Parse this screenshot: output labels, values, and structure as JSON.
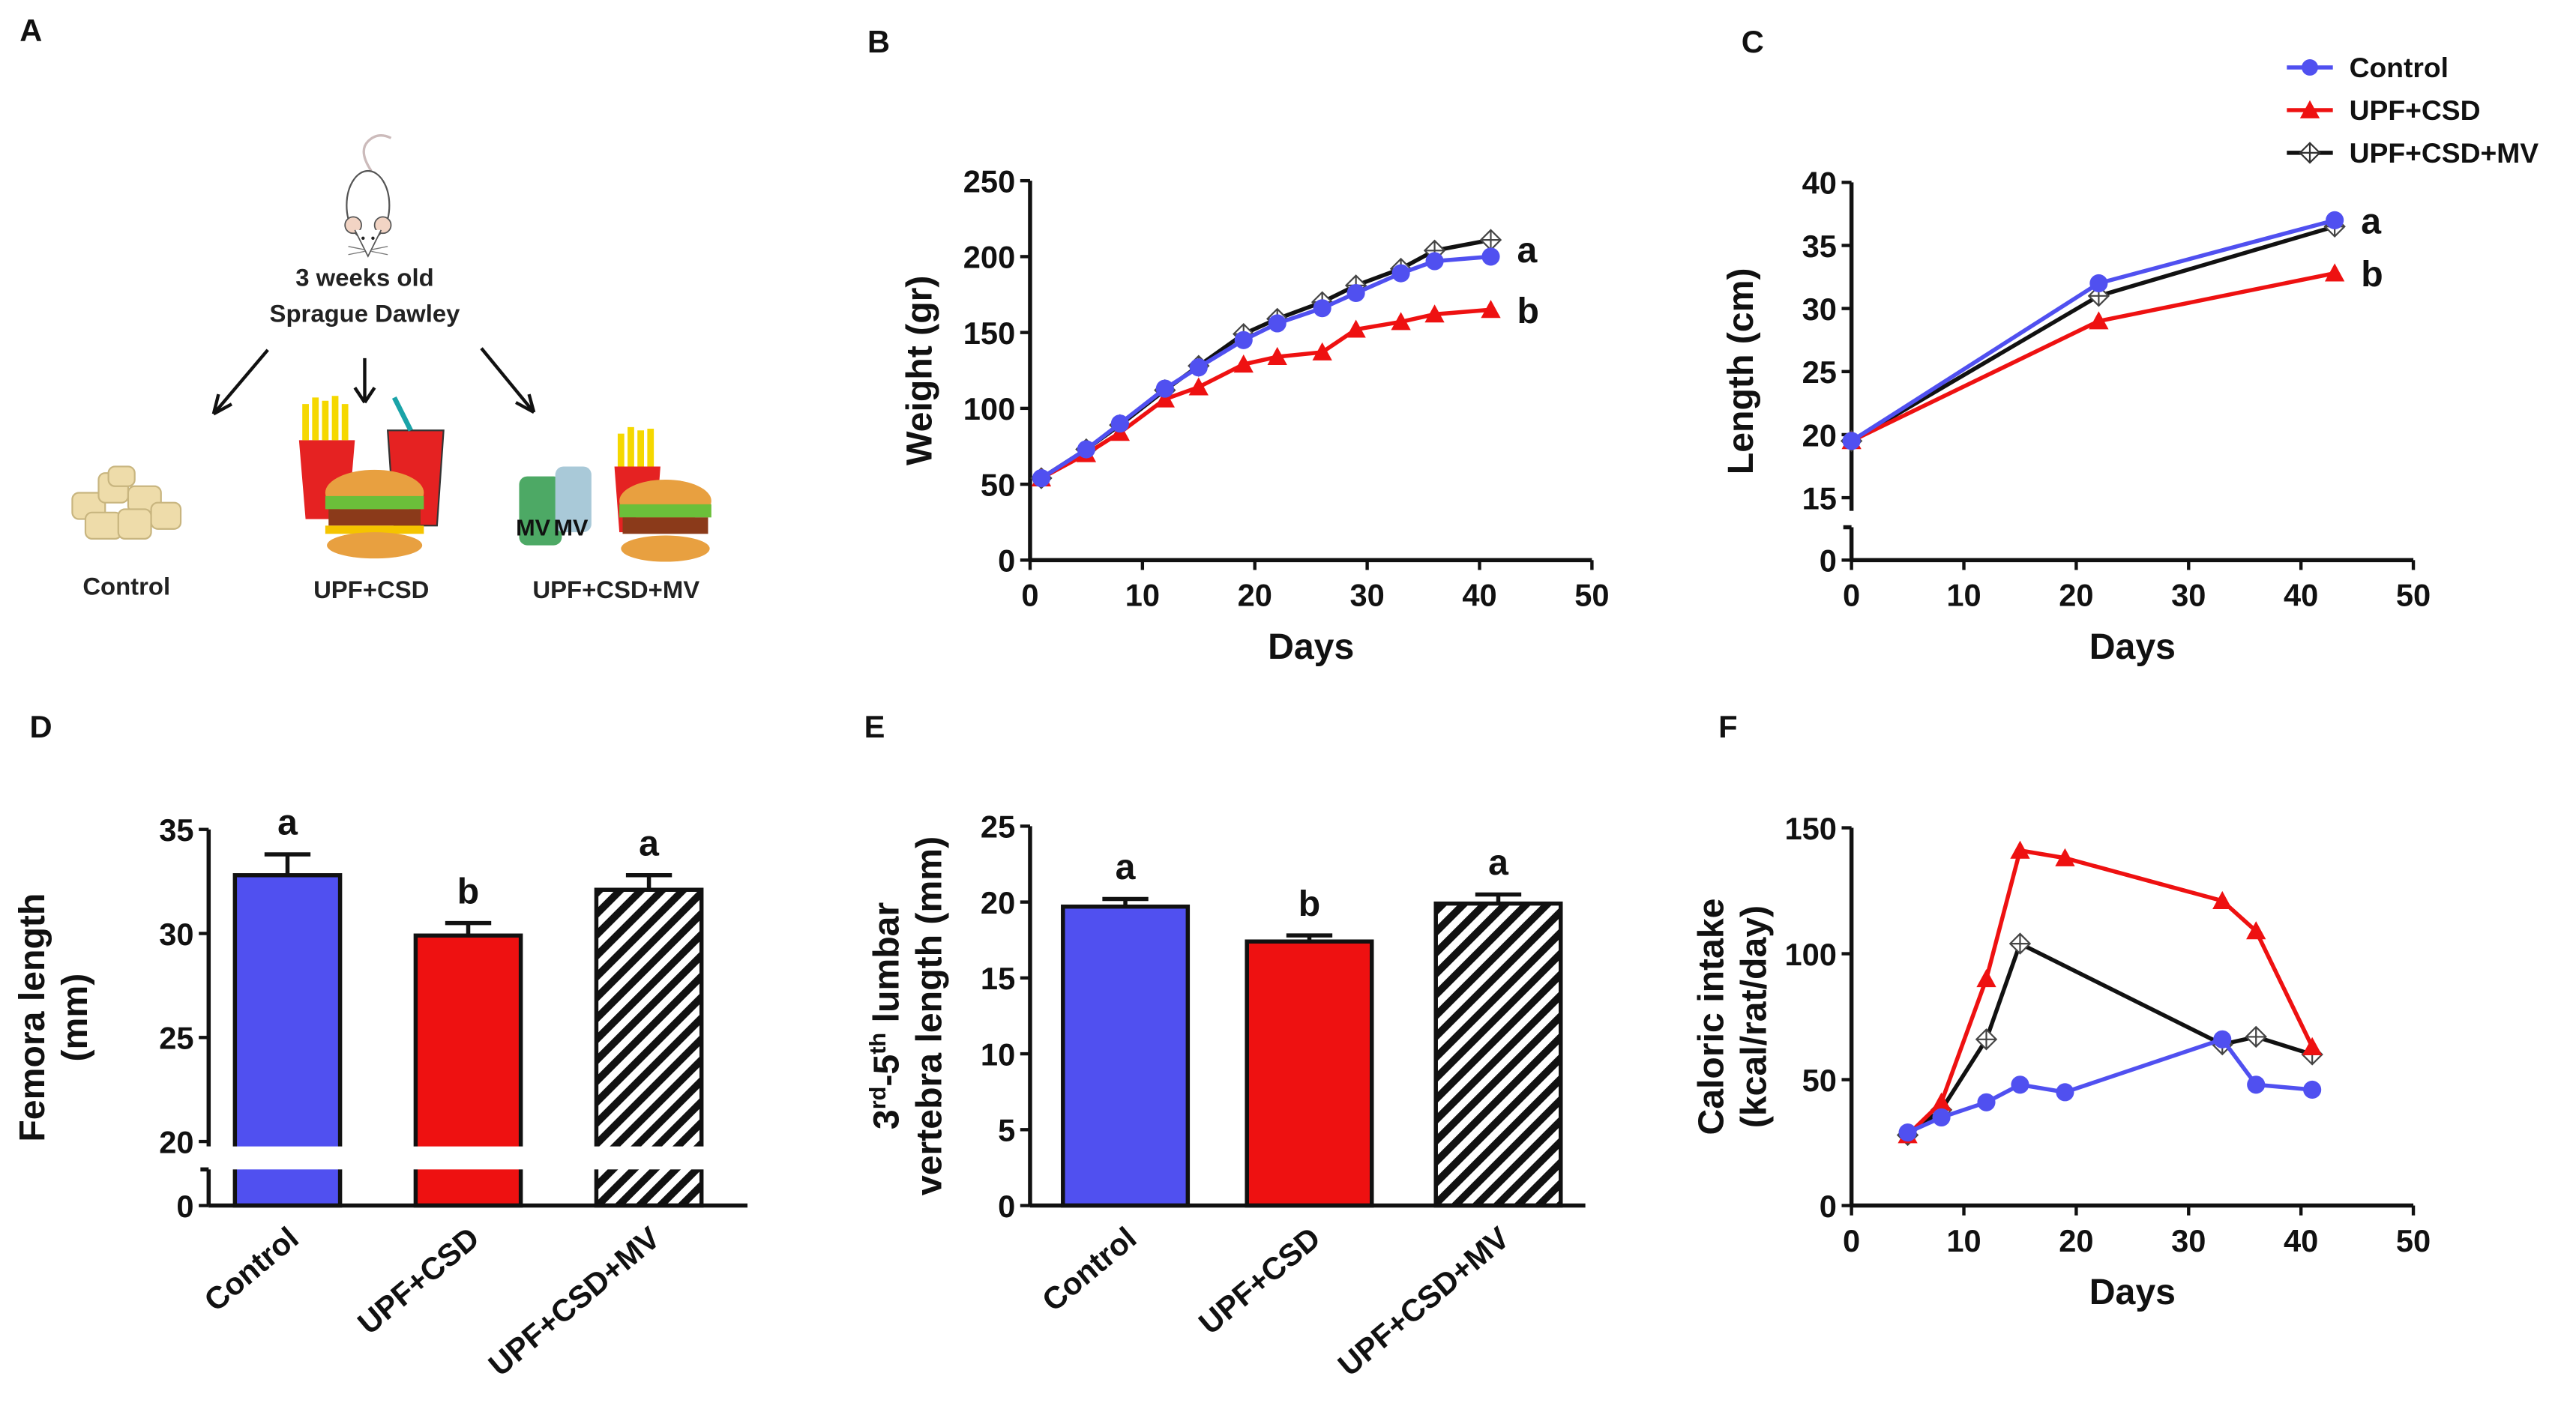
{
  "panel_labels": [
    "A",
    "B",
    "C",
    "D",
    "E",
    "F"
  ],
  "schematic": {
    "animal_line1": "3 weeks old",
    "animal_line2": "Sprague Dawley",
    "groups": [
      "Control",
      "UPF+CSD",
      "UPF+CSD+MV"
    ],
    "bottle_labels": [
      "MV",
      "MV"
    ]
  },
  "legend": {
    "placement": "top-right",
    "entries": [
      {
        "name": "Control",
        "color": "#5050f0",
        "marker": "circle"
      },
      {
        "name": "UPF+CSD",
        "color": "#ee1111",
        "marker": "triangle"
      },
      {
        "name": "UPF+CSD+MV",
        "color": "#111111",
        "marker": "crossed-diamond"
      }
    ]
  },
  "chart_data": [
    {
      "id": "B",
      "type": "line",
      "xlabel": "Days",
      "ylabel": "Weight (gr)",
      "xlim": [
        0,
        50
      ],
      "ylim": [
        0,
        250
      ],
      "xticks": [
        "0",
        "10",
        "20",
        "30",
        "40",
        "50"
      ],
      "yticks": [
        "0",
        "50",
        "100",
        "150",
        "200",
        "250"
      ],
      "series": [
        {
          "name": "UPF+CSD+MV",
          "x": [
            1,
            5,
            8,
            12,
            15,
            19,
            22,
            26,
            29,
            33,
            36,
            41
          ],
          "y": [
            54,
            73,
            89,
            112,
            128,
            149,
            159,
            170,
            181,
            192,
            204,
            211
          ]
        },
        {
          "name": "UPF+CSD",
          "x": [
            1,
            5,
            8,
            12,
            15,
            19,
            22,
            26,
            29,
            33,
            36,
            41
          ],
          "y": [
            54,
            70,
            84,
            106,
            114,
            129,
            134,
            137,
            152,
            157,
            162,
            165
          ]
        },
        {
          "name": "Control",
          "x": [
            1,
            5,
            8,
            12,
            15,
            19,
            22,
            26,
            29,
            33,
            36,
            41
          ],
          "y": [
            54,
            73,
            90,
            113,
            127,
            145,
            156,
            166,
            176,
            189,
            197,
            200
          ]
        }
      ],
      "annotations": [
        {
          "text": "a",
          "x": 41,
          "y": 205
        },
        {
          "text": "b",
          "x": 41,
          "y": 165
        }
      ]
    },
    {
      "id": "C",
      "type": "line",
      "xlabel": "Days",
      "ylabel": "Length (cm)",
      "xlim": [
        0,
        50
      ],
      "ylim": [
        0,
        40
      ],
      "axis_break": [
        0,
        15
      ],
      "xticks": [
        "0",
        "10",
        "20",
        "30",
        "40",
        "50"
      ],
      "yticks": [
        "0",
        "15",
        "20",
        "25",
        "30",
        "35",
        "40"
      ],
      "series": [
        {
          "name": "UPF+CSD+MV",
          "x": [
            0,
            22,
            43
          ],
          "y": [
            19.5,
            31,
            36.5
          ]
        },
        {
          "name": "UPF+CSD",
          "x": [
            0,
            22,
            43
          ],
          "y": [
            19.5,
            29,
            32.8
          ]
        },
        {
          "name": "Control",
          "x": [
            0,
            22,
            43
          ],
          "y": [
            19.5,
            32,
            37
          ]
        }
      ],
      "annotations": [
        {
          "text": "a",
          "x": 43,
          "y": 37
        },
        {
          "text": "b",
          "x": 43,
          "y": 32.8
        }
      ]
    },
    {
      "id": "D",
      "type": "bar",
      "xlabel": "",
      "ylabel_lines": [
        "Femora length",
        "(mm)"
      ],
      "ylim": [
        0,
        35
      ],
      "axis_break": [
        0,
        20
      ],
      "yticks": [
        "0",
        "20",
        "25",
        "30",
        "35"
      ],
      "categories": [
        "Control",
        "UPF+CSD",
        "UPF+CSD+MV"
      ],
      "values": [
        32.8,
        29.9,
        32.1
      ],
      "errors": [
        1.0,
        0.6,
        0.7
      ],
      "letters": [
        "a",
        "b",
        "a"
      ]
    },
    {
      "id": "E",
      "type": "bar",
      "xlabel": "",
      "ylabel_parts": {
        "a": "3",
        "b": "rd",
        "c": "-5",
        "d": "th",
        "e": " lumbar",
        "line2": "vertebra length (mm)"
      },
      "ylim": [
        0,
        25
      ],
      "yticks": [
        "0",
        "5",
        "10",
        "15",
        "20",
        "25"
      ],
      "categories": [
        "Control",
        "UPF+CSD",
        "UPF+CSD+MV"
      ],
      "values": [
        19.7,
        17.4,
        19.9
      ],
      "errors": [
        0.5,
        0.4,
        0.6
      ],
      "letters": [
        "a",
        "b",
        "a"
      ]
    },
    {
      "id": "F",
      "type": "line",
      "xlabel": "Days",
      "ylabel_lines": [
        "Caloric intake",
        "(kcal/rat/day)"
      ],
      "xlim": [
        0,
        50
      ],
      "ylim": [
        0,
        150
      ],
      "xticks": [
        "0",
        "10",
        "20",
        "30",
        "40",
        "50"
      ],
      "yticks": [
        "0",
        "50",
        "100",
        "150"
      ],
      "series": [
        {
          "name": "UPF+CSD+MV",
          "x": [
            5,
            8,
            12,
            15,
            33,
            36,
            41
          ],
          "y": [
            28,
            38,
            66,
            104,
            64,
            67,
            60
          ]
        },
        {
          "name": "UPF+CSD",
          "x": [
            5,
            8,
            12,
            15,
            19,
            33,
            36,
            41
          ],
          "y": [
            28,
            41,
            90,
            141,
            138,
            121,
            109,
            63
          ]
        },
        {
          "name": "Control",
          "x": [
            5,
            8,
            12,
            15,
            19,
            33,
            36,
            41
          ],
          "y": [
            29,
            35,
            41,
            48,
            45,
            66,
            48,
            46
          ]
        }
      ]
    }
  ]
}
